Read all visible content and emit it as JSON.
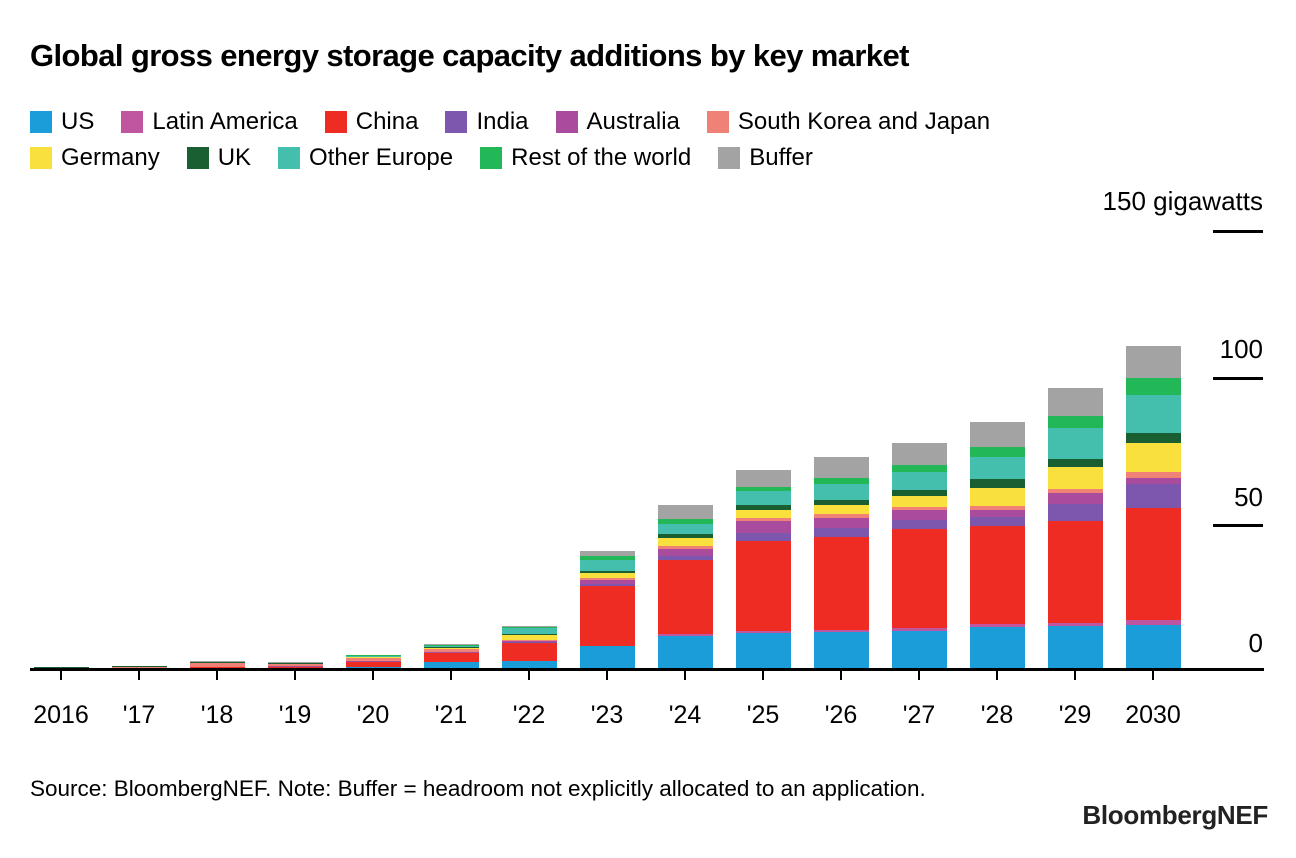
{
  "title": "Global gross energy storage capacity additions by key market",
  "legend": {
    "rows": [
      [
        {
          "label": "US",
          "color": "#1a9dd9"
        },
        {
          "label": "Latin America",
          "color": "#c0569f"
        },
        {
          "label": "China",
          "color": "#ee2c24"
        },
        {
          "label": "India",
          "color": "#7d57ae"
        },
        {
          "label": "Australia",
          "color": "#a94c9d"
        },
        {
          "label": "South Korea and Japan",
          "color": "#f08176"
        }
      ],
      [
        {
          "label": "Germany",
          "color": "#f9e03d"
        },
        {
          "label": "UK",
          "color": "#1a5f31"
        },
        {
          "label": "Other Europe",
          "color": "#45bfad"
        },
        {
          "label": "Rest of the world",
          "color": "#22b757"
        },
        {
          "label": "Buffer",
          "color": "#a3a3a3"
        }
      ]
    ]
  },
  "axis": {
    "top_label": "150 gigawatts",
    "right_ticks": [
      "100",
      "50",
      "0"
    ]
  },
  "chart_data": {
    "type": "bar",
    "stacked": true,
    "title": "Global gross energy storage capacity additions by key market",
    "ylabel": "gigawatts",
    "ylim": [
      0,
      150
    ],
    "grid": false,
    "legend_position": "top",
    "categories": [
      "2016",
      "'17",
      "'18",
      "'19",
      "'20",
      "'21",
      "'22",
      "'23",
      "'24",
      "'25",
      "'26",
      "'27",
      "'28",
      "'29",
      "2030"
    ],
    "series": [
      {
        "name": "US",
        "color": "#1a9dd9",
        "values": [
          0.3,
          0.25,
          0.4,
          0.4,
          1.1,
          2.6,
          3.0,
          8.1,
          11.8,
          12.7,
          13.0,
          13.5,
          14.8,
          15.0,
          15.6
        ]
      },
      {
        "name": "Latin America",
        "color": "#c0569f",
        "values": [
          0.02,
          0.05,
          0.05,
          0.05,
          0.1,
          0.1,
          0.1,
          0.3,
          0.5,
          0.6,
          0.7,
          0.8,
          1.0,
          1.2,
          1.7
        ]
      },
      {
        "name": "China",
        "color": "#ee2c24",
        "values": [
          0.1,
          0.1,
          0.5,
          0.6,
          1.6,
          3.2,
          6.3,
          20.5,
          25.5,
          31.0,
          32.0,
          34.0,
          33.7,
          35.0,
          38.4
        ]
      },
      {
        "name": "India",
        "color": "#7d57ae",
        "values": [
          0.0,
          0.1,
          0.05,
          0.05,
          0.1,
          0.1,
          0.2,
          0.5,
          1.2,
          2.9,
          3.0,
          3.2,
          3.0,
          5.7,
          8.0
        ]
      },
      {
        "name": "Australia",
        "color": "#a94c9d",
        "values": [
          0.05,
          0.2,
          0.1,
          0.15,
          0.15,
          0.3,
          0.3,
          1.5,
          2.5,
          4.0,
          3.5,
          3.3,
          2.3,
          4.0,
          2.3
        ]
      },
      {
        "name": "South Korea and Japan",
        "color": "#f08176",
        "values": [
          0.2,
          0.4,
          1.3,
          0.8,
          1.0,
          0.9,
          0.5,
          0.8,
          1.0,
          1.0,
          1.2,
          1.3,
          1.4,
          1.1,
          2.0
        ]
      },
      {
        "name": "Germany",
        "color": "#f9e03d",
        "values": [
          0.2,
          0.1,
          0.15,
          0.15,
          0.4,
          0.5,
          1.7,
          1.7,
          2.9,
          2.9,
          3.4,
          3.6,
          6.4,
          7.6,
          10.0
        ]
      },
      {
        "name": "UK",
        "color": "#1a5f31",
        "values": [
          0.05,
          0.1,
          0.1,
          0.1,
          0.2,
          0.3,
          0.4,
          0.6,
          1.3,
          1.4,
          1.7,
          2.2,
          3.1,
          3.0,
          3.4
        ]
      },
      {
        "name": "Other Europe",
        "color": "#45bfad",
        "values": [
          0.05,
          0.1,
          0.15,
          0.15,
          0.3,
          0.4,
          1.8,
          3.8,
          3.6,
          4.8,
          5.5,
          6.0,
          7.4,
          10.5,
          13.0
        ]
      },
      {
        "name": "Rest of the world",
        "color": "#22b757",
        "values": [
          0.05,
          0.05,
          0.1,
          0.15,
          0.25,
          0.3,
          0.6,
          1.2,
          1.7,
          1.7,
          2.0,
          2.6,
          3.4,
          4.0,
          6.0
        ]
      },
      {
        "name": "Buffer",
        "color": "#a3a3a3",
        "values": [
          0.0,
          0.05,
          0.1,
          0.1,
          0.1,
          0.1,
          0.4,
          2.0,
          4.5,
          5.8,
          7.0,
          7.5,
          8.5,
          9.9,
          10.7
        ]
      }
    ]
  },
  "source_note": "Source: BloombergNEF. Note: Buffer = headroom not explicitly allocated to an application.",
  "logo_text": "BloombergNEF",
  "colors": {
    "background": "#ffffff",
    "axis": "#000000",
    "text": "#000000"
  }
}
